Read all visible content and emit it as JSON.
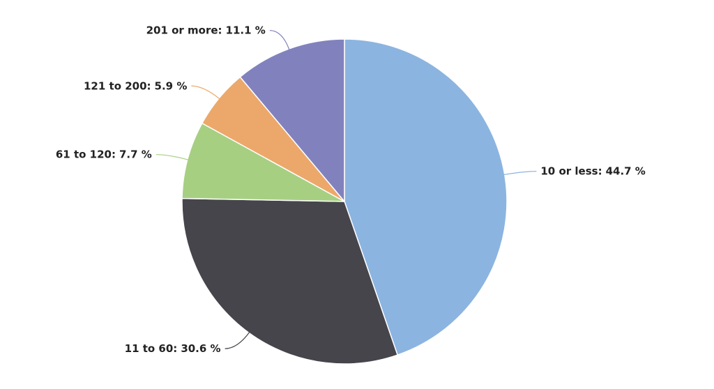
{
  "chart_data": {
    "type": "pie",
    "categories": [
      "10 or less:",
      "11 to 60:",
      "61 to 120:",
      "121 to 200:",
      "201 or more:"
    ],
    "values": [
      44.7,
      30.6,
      7.7,
      5.9,
      11.1
    ],
    "value_labels": [
      "44.7 %",
      "30.6 %",
      "7.7 %",
      "5.9 %",
      "11.1 %"
    ],
    "colors": [
      "#8cb4e0",
      "#46454b",
      "#a7cf82",
      "#eca86a",
      "#8182bd"
    ]
  }
}
